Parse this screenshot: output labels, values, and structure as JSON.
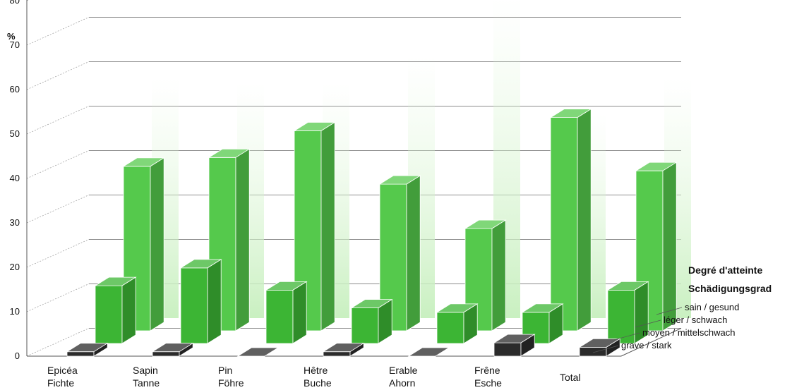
{
  "chart_data": {
    "type": "bar",
    "subtype": "3d-stacked-depth",
    "ylabel": "%",
    "ylim": [
      0,
      80
    ],
    "yticks": [
      0,
      10,
      20,
      30,
      40,
      50,
      60,
      70,
      80
    ],
    "grid": true,
    "categories": [
      [
        "Epicéa",
        "Fichte"
      ],
      [
        "Sapin",
        "Tanne"
      ],
      [
        "Pin",
        "Föhre"
      ],
      [
        "Hêtre",
        "Buche"
      ],
      [
        "Erable",
        "Ahorn"
      ],
      [
        "Frêne",
        "Esche"
      ],
      [
        "Total"
      ]
    ],
    "series": [
      {
        "name": "grave / stark",
        "color": "#2b2b2b",
        "values": [
          1,
          1,
          0,
          1,
          0,
          3,
          2
        ]
      },
      {
        "name": "moyen / mittelschwach",
        "color": "#3cb534",
        "values": [
          13,
          17,
          12,
          8,
          7,
          7,
          12
        ]
      },
      {
        "name": "léger / schwach",
        "color": "#55c94c",
        "values": [
          37,
          39,
          45,
          33,
          23,
          48,
          36
        ]
      },
      {
        "name": "sain / gesund",
        "color": "#cdf2c4",
        "values": [
          54,
          53,
          53,
          59,
          72,
          46,
          54
        ]
      }
    ],
    "legend": {
      "title_lines": [
        "Degré d'atteinte",
        "Schädigungsgrad"
      ],
      "placement": "right"
    }
  }
}
